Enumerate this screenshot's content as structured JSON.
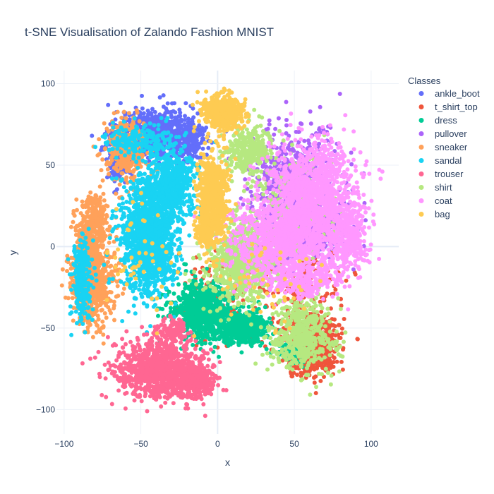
{
  "chart_data": {
    "type": "scatter",
    "title": "t-SNE Visualisation of Zalando Fashion MNIST",
    "xlabel": "x",
    "ylabel": "y",
    "xlim": [
      -105,
      118
    ],
    "ylim": [
      -115,
      108
    ],
    "x_ticks": [
      -100,
      -50,
      0,
      50,
      100
    ],
    "y_ticks": [
      -100,
      -50,
      0,
      50,
      100
    ],
    "x_tick_labels": [
      "−100",
      "−50",
      "0",
      "50",
      "100"
    ],
    "y_tick_labels": [
      "−100",
      "−50",
      "0",
      "50",
      "100"
    ],
    "grid": true,
    "legend": {
      "title": "Classes",
      "placement": "right"
    },
    "series": [
      {
        "name": "ankle_boot",
        "color": "#636efa",
        "blobs": [
          {
            "cx": -40,
            "cy": 70,
            "rx": 22,
            "ry": 14,
            "n": 650
          },
          {
            "cx": -18,
            "cy": 65,
            "rx": 10,
            "ry": 12,
            "n": 200
          },
          {
            "cx": -65,
            "cy": 55,
            "rx": 8,
            "ry": 16,
            "n": 150
          }
        ]
      },
      {
        "name": "t_shirt_top",
        "color": "#ef553b",
        "blobs": [
          {
            "cx": 62,
            "cy": -60,
            "rx": 14,
            "ry": 16,
            "n": 700
          },
          {
            "cx": 50,
            "cy": -20,
            "rx": 30,
            "ry": 30,
            "n": 200
          },
          {
            "cx": 0,
            "cy": -30,
            "rx": 22,
            "ry": 22,
            "n": 120
          }
        ]
      },
      {
        "name": "dress",
        "color": "#00cc96",
        "blobs": [
          {
            "cx": -10,
            "cy": -40,
            "rx": 18,
            "ry": 16,
            "n": 800
          },
          {
            "cx": 18,
            "cy": -50,
            "rx": 14,
            "ry": 9,
            "n": 450
          },
          {
            "cx": 50,
            "cy": -65,
            "rx": 8,
            "ry": 6,
            "n": 100
          }
        ]
      },
      {
        "name": "pullover",
        "color": "#ab63fa",
        "blobs": [
          {
            "cx": 50,
            "cy": 40,
            "rx": 25,
            "ry": 30,
            "n": 600
          },
          {
            "cx": 62,
            "cy": 10,
            "rx": 26,
            "ry": 20,
            "n": 400
          }
        ]
      },
      {
        "name": "sneaker",
        "color": "#ffa15a",
        "blobs": [
          {
            "cx": -82,
            "cy": -15,
            "rx": 12,
            "ry": 28,
            "n": 900
          },
          {
            "cx": -60,
            "cy": 60,
            "rx": 12,
            "ry": 18,
            "n": 350
          },
          {
            "cx": -80,
            "cy": 20,
            "rx": 8,
            "ry": 14,
            "n": 200
          }
        ]
      },
      {
        "name": "sandal",
        "color": "#19d3f3",
        "blobs": [
          {
            "cx": -45,
            "cy": 5,
            "rx": 16,
            "ry": 32,
            "n": 1400
          },
          {
            "cx": -30,
            "cy": 38,
            "rx": 15,
            "ry": 18,
            "n": 600
          },
          {
            "cx": -88,
            "cy": -20,
            "rx": 6,
            "ry": 22,
            "n": 250
          },
          {
            "cx": -50,
            "cy": 65,
            "rx": 20,
            "ry": 10,
            "n": 200
          }
        ]
      },
      {
        "name": "trouser",
        "color": "#ff6692",
        "blobs": [
          {
            "cx": -40,
            "cy": -75,
            "rx": 24,
            "ry": 16,
            "n": 900
          },
          {
            "cx": -15,
            "cy": -82,
            "rx": 12,
            "ry": 10,
            "n": 350
          },
          {
            "cx": -30,
            "cy": -52,
            "rx": 10,
            "ry": 8,
            "n": 150
          }
        ]
      },
      {
        "name": "shirt",
        "color": "#b6e880",
        "blobs": [
          {
            "cx": 15,
            "cy": -10,
            "rx": 20,
            "ry": 22,
            "n": 700
          },
          {
            "cx": 55,
            "cy": -55,
            "rx": 18,
            "ry": 20,
            "n": 500
          },
          {
            "cx": 20,
            "cy": 60,
            "rx": 14,
            "ry": 14,
            "n": 300
          },
          {
            "cx": 45,
            "cy": 20,
            "rx": 30,
            "ry": 35,
            "n": 250
          }
        ]
      },
      {
        "name": "coat",
        "color": "#ff97ff",
        "blobs": [
          {
            "cx": 62,
            "cy": 30,
            "rx": 26,
            "ry": 32,
            "n": 1300
          },
          {
            "cx": 40,
            "cy": 5,
            "rx": 28,
            "ry": 22,
            "n": 800
          },
          {
            "cx": 85,
            "cy": 5,
            "rx": 12,
            "ry": 20,
            "n": 300
          },
          {
            "cx": 55,
            "cy": -20,
            "rx": 22,
            "ry": 10,
            "n": 300
          }
        ]
      },
      {
        "name": "bag",
        "color": "#fecb52",
        "blobs": [
          {
            "cx": 3,
            "cy": 82,
            "rx": 12,
            "ry": 9,
            "n": 600
          },
          {
            "cx": -3,
            "cy": 30,
            "rx": 8,
            "ry": 24,
            "n": 700
          },
          {
            "cx": -8,
            "cy": 10,
            "rx": 6,
            "ry": 8,
            "n": 150
          },
          {
            "cx": -50,
            "cy": -5,
            "rx": 25,
            "ry": 35,
            "n": 50
          },
          {
            "cx": 30,
            "cy": -25,
            "rx": 30,
            "ry": 25,
            "n": 50
          }
        ]
      }
    ]
  }
}
